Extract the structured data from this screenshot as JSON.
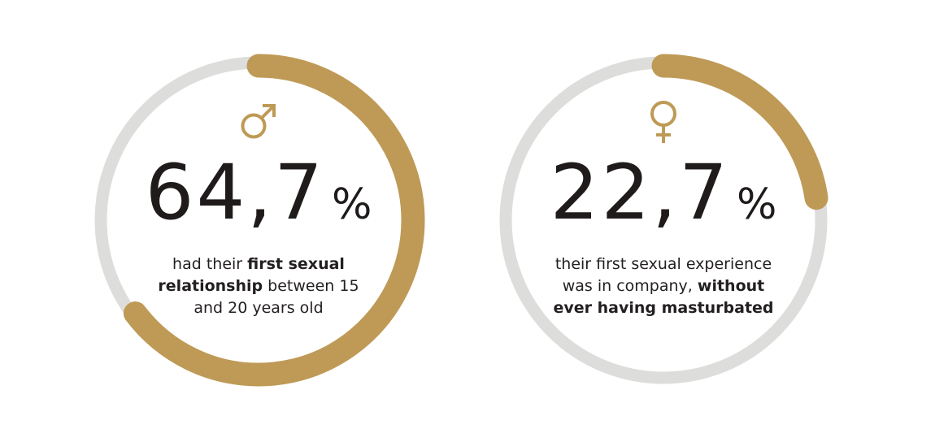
{
  "colors": {
    "accent": "#BE9A56",
    "track": "#DDDDDC",
    "text": "#1f1b1a"
  },
  "chart_data": [
    {
      "type": "pie",
      "value": 64.7,
      "unit": "%",
      "value_label": "64,7",
      "icon": "male-symbol-icon",
      "description": {
        "pre": "had their ",
        "bold1": "first sexual relationship",
        "mid": " between 15 and 20 years old",
        "bold2": ""
      }
    },
    {
      "type": "pie",
      "value": 22.7,
      "unit": "%",
      "value_label": "22,7",
      "icon": "female-symbol-icon",
      "description": {
        "pre": "their first sexual experience was in company, ",
        "bold1": "",
        "mid": "",
        "bold2": "without ever having masturbated"
      }
    }
  ]
}
